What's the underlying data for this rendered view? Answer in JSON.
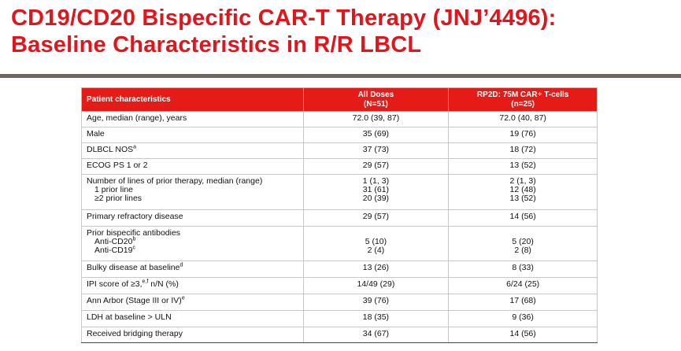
{
  "slide": {
    "title_line1": "CD19/CD20 Bispecific CAR-T Therapy (JNJ’4496):",
    "title_line2": "Baseline Characteristics in R/R LBCL",
    "accent_color": "#e41b17",
    "rule_color": "#6e6660"
  },
  "table": {
    "header": {
      "col0": "Patient characteristics",
      "col1_line1": "All Doses",
      "col1_line2": "(N=51)",
      "col2_line1": "RP2D: 75M CAR+ T-cells",
      "col2_line2": "(n=25)"
    },
    "rows": [
      {
        "label": "Age, median (range), years",
        "all": "72.0 (39, 87)",
        "rp2d": "72.0 (40, 87)"
      },
      {
        "label": "Male",
        "all": "35 (69)",
        "rp2d": "19 (76)"
      },
      {
        "label": "DLBCL NOS",
        "sup": "a",
        "all": "37 (73)",
        "rp2d": "18 (72)"
      },
      {
        "label": "ECOG PS 1 or 2",
        "all": "29 (57)",
        "rp2d": "13 (52)"
      },
      {
        "label": "Number of lines of prior therapy, median (range)",
        "all": "1 (1, 3)",
        "rp2d": "2 (1, 3)",
        "sub1": "1 prior line",
        "all1": "31 (61)",
        "rp2d1": "12 (48)",
        "sub2": "≥2 prior lines",
        "all2": "20 (39)",
        "rp2d2": "13 (52)"
      },
      {
        "label": "Primary refractory disease",
        "all": "29 (57)",
        "rp2d": "14 (56)"
      },
      {
        "label": "Prior bispecific antibodies",
        "sub1": "Anti-CD20",
        "sup1": "b",
        "all1": "5 (10)",
        "rp2d1": "5 (20)",
        "sub2": "Anti-CD19",
        "sup2": "c",
        "all2": "2 (4)",
        "rp2d2": "2 (8)"
      },
      {
        "label": "Bulky disease at baseline",
        "sup": "d",
        "all": "13 (26)",
        "rp2d": "8 (33)"
      },
      {
        "label": "IPI score of ≥3,",
        "sup": "e,f",
        "label_tail": " n/N (%)",
        "all": "14/49 (29)",
        "rp2d": "6/24 (25)"
      },
      {
        "label": "Ann Arbor (Stage III or IV)",
        "sup": "e",
        "all": "39 (76)",
        "rp2d": "17 (68)"
      },
      {
        "label": "LDH at baseline > ULN",
        "all": "18 (35)",
        "rp2d": "9 (36)"
      },
      {
        "label": "Received bridging therapy",
        "all": "34 (67)",
        "rp2d": "14 (56)"
      }
    ]
  }
}
